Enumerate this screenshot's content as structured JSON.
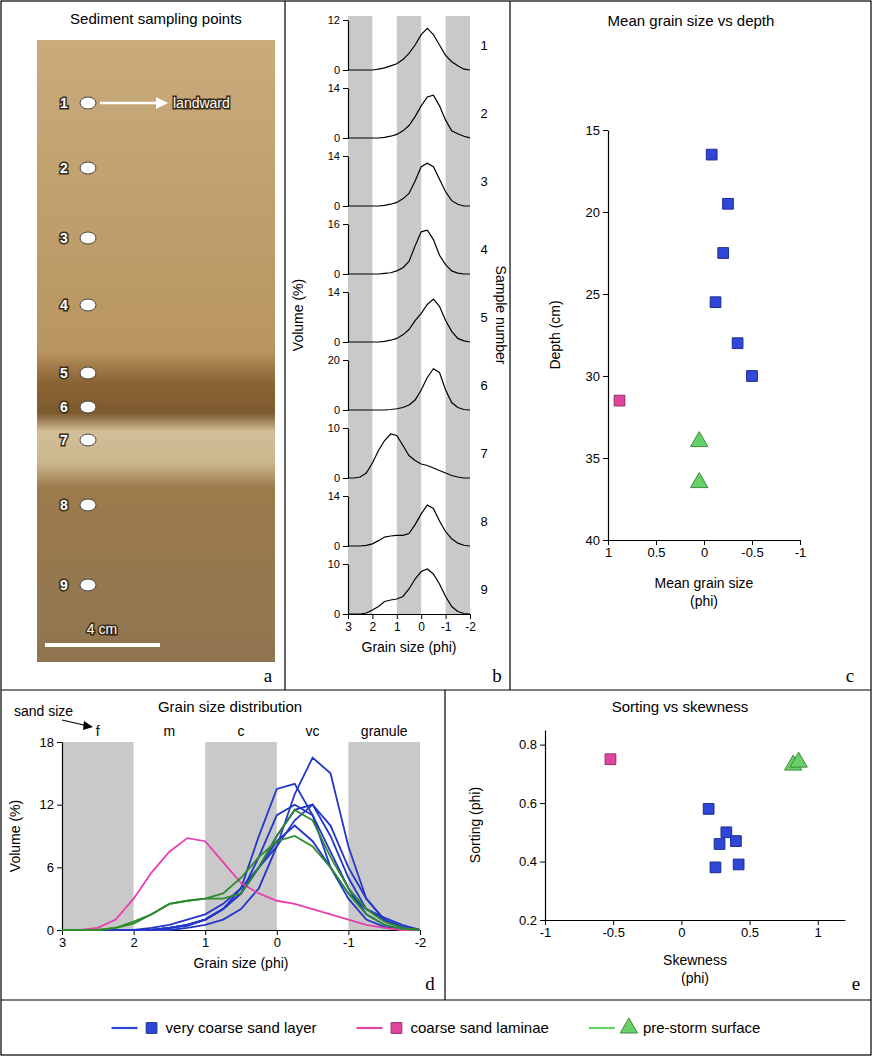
{
  "chart_data": [
    {
      "type": "photo",
      "panel_label": "a",
      "title": "Sediment sampling points",
      "samples": [
        1,
        2,
        3,
        4,
        5,
        6,
        7,
        8,
        9
      ],
      "annotations": [
        "landward",
        "4 cm"
      ]
    },
    {
      "type": "line",
      "panel_label": "b",
      "title": "Grain size distribution",
      "x_label": "Grain size (phi)",
      "y_label": "Volume (%)",
      "right_label": "Sample number",
      "color": "#000000",
      "x": [
        3,
        2.75,
        2.5,
        2.25,
        2,
        1.75,
        1.5,
        1.25,
        1,
        0.75,
        0.5,
        0.25,
        0,
        -0.25,
        -0.5,
        -0.75,
        -1,
        -1.25,
        -1.5,
        -1.75,
        -2
      ],
      "xlim": [
        3,
        -2
      ],
      "xticks": [
        3,
        2,
        1,
        0,
        -1,
        -2
      ],
      "shaded_ranges": [
        [
          3,
          2
        ],
        [
          1,
          0
        ],
        [
          -1,
          -2
        ]
      ],
      "series": [
        {
          "name": "1",
          "ylim": [
            0,
            12
          ],
          "yticks": [
            0,
            12
          ],
          "values": [
            0,
            0,
            0,
            0,
            0,
            0.2,
            0.5,
            1,
            1.5,
            2.5,
            4,
            6,
            8.5,
            10,
            8.5,
            6,
            3.5,
            2,
            1,
            0.2,
            0
          ]
        },
        {
          "name": "2",
          "ylim": [
            0,
            14
          ],
          "yticks": [
            0,
            14
          ],
          "values": [
            0,
            0,
            0,
            0,
            0,
            0,
            0.2,
            0.5,
            1,
            2,
            3.5,
            6,
            9,
            11.5,
            12,
            9,
            5,
            2,
            1.2,
            0.5,
            0
          ]
        },
        {
          "name": "3",
          "ylim": [
            0,
            14
          ],
          "yticks": [
            0,
            14
          ],
          "values": [
            0,
            0,
            0,
            0,
            0,
            0,
            0.2,
            0.5,
            1,
            2,
            3.5,
            7,
            11,
            12,
            11,
            7.5,
            4,
            1.5,
            0.5,
            0,
            0
          ]
        },
        {
          "name": "4",
          "ylim": [
            0,
            16
          ],
          "yticks": [
            0,
            16
          ],
          "values": [
            0,
            0,
            0,
            0,
            0,
            0,
            0.2,
            0.4,
            1,
            2,
            4,
            9,
            13.5,
            14,
            11,
            6,
            3,
            1,
            0.3,
            0,
            0
          ]
        },
        {
          "name": "5",
          "ylim": [
            0,
            14
          ],
          "yticks": [
            0,
            14
          ],
          "values": [
            0,
            0,
            0,
            0,
            0,
            0,
            0.2,
            0.5,
            1,
            2,
            3.5,
            6,
            8,
            10.5,
            12,
            10,
            6,
            3,
            1,
            0.3,
            0
          ]
        },
        {
          "name": "6",
          "ylim": [
            0,
            20
          ],
          "yticks": [
            0,
            20
          ],
          "values": [
            0,
            0,
            0,
            0,
            0,
            0,
            0,
            0.2,
            0.5,
            1,
            2,
            4,
            8,
            13,
            16.5,
            15,
            8,
            3,
            1,
            0.2,
            0
          ]
        },
        {
          "name": "7",
          "ylim": [
            0,
            10
          ],
          "yticks": [
            0,
            10
          ],
          "values": [
            0,
            0,
            0.2,
            1,
            3,
            5.5,
            7.5,
            8.8,
            8.5,
            6.5,
            4.5,
            3.5,
            2.8,
            2.5,
            2,
            1.5,
            1,
            0.5,
            0.2,
            0,
            0
          ]
        },
        {
          "name": "8",
          "ylim": [
            0,
            14
          ],
          "yticks": [
            0,
            14
          ],
          "values": [
            0,
            0,
            0,
            0.2,
            0.6,
            1.5,
            2.5,
            2.8,
            3,
            3,
            3.5,
            6,
            9,
            11.5,
            10.5,
            7,
            4,
            2,
            0.8,
            0.2,
            0
          ]
        },
        {
          "name": "9",
          "ylim": [
            0,
            10
          ],
          "yticks": [
            0,
            10
          ],
          "values": [
            0,
            0,
            0,
            0.2,
            0.8,
            1.5,
            2.5,
            2.8,
            3,
            3.5,
            5,
            7,
            8.5,
            9,
            8,
            6,
            3.5,
            1.5,
            0.5,
            0.1,
            0
          ]
        }
      ]
    },
    {
      "type": "scatter",
      "panel_label": "c",
      "title": "Mean grain size vs depth",
      "x_label": "Mean grain size (phi)",
      "y_label": "Depth (cm)",
      "xlim": [
        1,
        -1
      ],
      "xticks": [
        1,
        0.5,
        0,
        -0.5,
        -1
      ],
      "ylim": [
        40,
        15
      ],
      "yticks": [
        40,
        35,
        30,
        25,
        20,
        15
      ],
      "series": [
        {
          "color": "#2f47d8",
          "marker": "square",
          "x": [
            -0.08,
            -0.25,
            -0.2,
            -0.12,
            -0.35,
            -0.5
          ],
          "values": [
            16.5,
            19.5,
            22.5,
            25.5,
            28,
            30
          ]
        },
        {
          "color": "#e0459f",
          "marker": "square",
          "x": [
            0.88
          ],
          "values": [
            31.5
          ]
        },
        {
          "color": "#66d166",
          "marker": "triangle",
          "x": [
            0.05,
            0.05
          ],
          "values": [
            34,
            36.5
          ]
        }
      ]
    },
    {
      "type": "line",
      "panel_label": "d",
      "title": "Grain size distribution",
      "x_label": "Grain size (phi)",
      "y_label": "Volume (%)",
      "size_classes_label": "sand size",
      "x": [
        3,
        2.75,
        2.5,
        2.25,
        2,
        1.75,
        1.5,
        1.25,
        1,
        0.75,
        0.5,
        0.25,
        0,
        -0.25,
        -0.5,
        -0.75,
        -1,
        -1.25,
        -1.5,
        -1.75,
        -2
      ],
      "xlim": [
        3,
        -2
      ],
      "xticks": [
        3,
        2,
        1,
        0,
        -1,
        -2
      ],
      "ylim": [
        0,
        18
      ],
      "yticks": [
        0,
        6,
        12,
        18
      ],
      "size_classes": [
        {
          "label": "f",
          "range": [
            3,
            2
          ]
        },
        {
          "label": "m",
          "range": [
            2,
            1
          ]
        },
        {
          "label": "c",
          "range": [
            1,
            0
          ]
        },
        {
          "label": "vc",
          "range": [
            0,
            -1
          ]
        },
        {
          "label": "granule",
          "range": [
            -1,
            -2
          ]
        }
      ],
      "series": [
        {
          "color": "#2236c8",
          "values": [
            0,
            0,
            0,
            0,
            0,
            0.2,
            0.5,
            1,
            1.5,
            2.5,
            4,
            6,
            8.5,
            10,
            8.5,
            6,
            3.5,
            2,
            1,
            0.2,
            0
          ]
        },
        {
          "color": "#2236c8",
          "values": [
            0,
            0,
            0,
            0,
            0,
            0,
            0.2,
            0.5,
            1,
            2,
            3.5,
            6,
            9,
            11.5,
            12,
            9,
            5,
            2,
            1.2,
            0.5,
            0
          ]
        },
        {
          "color": "#2236c8",
          "values": [
            0,
            0,
            0,
            0,
            0,
            0,
            0.2,
            0.5,
            1,
            2,
            3.5,
            7,
            11,
            12,
            11,
            7.5,
            4,
            1.5,
            0.5,
            0,
            0
          ]
        },
        {
          "color": "#2236c8",
          "values": [
            0,
            0,
            0,
            0,
            0,
            0,
            0.2,
            0.4,
            1,
            2,
            4,
            9,
            13.5,
            14,
            11,
            6,
            3,
            1,
            0.3,
            0,
            0
          ]
        },
        {
          "color": "#2236c8",
          "values": [
            0,
            0,
            0,
            0,
            0,
            0,
            0.2,
            0.5,
            1,
            2,
            3.5,
            6,
            8,
            10.5,
            12,
            10,
            6,
            3,
            1,
            0.3,
            0
          ]
        },
        {
          "color": "#2236c8",
          "values": [
            0,
            0,
            0,
            0,
            0,
            0,
            0,
            0.2,
            0.5,
            1,
            2,
            4,
            8,
            13,
            16.5,
            15,
            8,
            3,
            1,
            0.2,
            0
          ]
        },
        {
          "color": "#e83fb0",
          "values": [
            0,
            0,
            0.2,
            1,
            3,
            5.5,
            7.5,
            8.8,
            8.5,
            6.5,
            4.5,
            3.5,
            2.8,
            2.5,
            2,
            1.5,
            1,
            0.5,
            0.2,
            0,
            0
          ]
        },
        {
          "color": "#2e8b2e",
          "values": [
            0,
            0,
            0,
            0.2,
            0.6,
            1.5,
            2.5,
            2.8,
            3,
            3,
            3.5,
            6,
            9,
            11.5,
            10.5,
            7,
            4,
            2,
            0.8,
            0.2,
            0
          ]
        },
        {
          "color": "#2e8b2e",
          "values": [
            0,
            0,
            0,
            0.2,
            0.8,
            1.5,
            2.5,
            2.8,
            3,
            3.5,
            5,
            7,
            8.5,
            9,
            8,
            6,
            3.5,
            1.5,
            0.5,
            0.1,
            0
          ]
        }
      ]
    },
    {
      "type": "scatter",
      "panel_label": "e",
      "title": "Sorting vs skewness",
      "x_label": "Skewness (phi)",
      "y_label": "Sorting (phi)",
      "xlim": [
        -1,
        1.2
      ],
      "xticks": [
        -1,
        -0.5,
        0,
        0.5,
        1
      ],
      "ylim": [
        0.2,
        0.85
      ],
      "yticks": [
        0.2,
        0.4,
        0.6,
        0.8
      ],
      "legend": "bottom",
      "series": [
        {
          "name": "very coarse sand layer",
          "color": "#2f47d8",
          "marker": "square",
          "x": [
            0.2,
            0.25,
            0.28,
            0.33,
            0.4,
            0.42
          ],
          "values": [
            0.58,
            0.38,
            0.46,
            0.5,
            0.47,
            0.39
          ]
        },
        {
          "name": "coarse sand laminae",
          "color": "#e0459f",
          "marker": "square",
          "x": [
            -0.52
          ],
          "values": [
            0.75
          ]
        },
        {
          "name": "pre-storm surface",
          "color": "#66d166",
          "marker": "triangle",
          "x": [
            0.82,
            0.86
          ],
          "values": [
            0.73,
            0.74
          ]
        }
      ]
    }
  ]
}
